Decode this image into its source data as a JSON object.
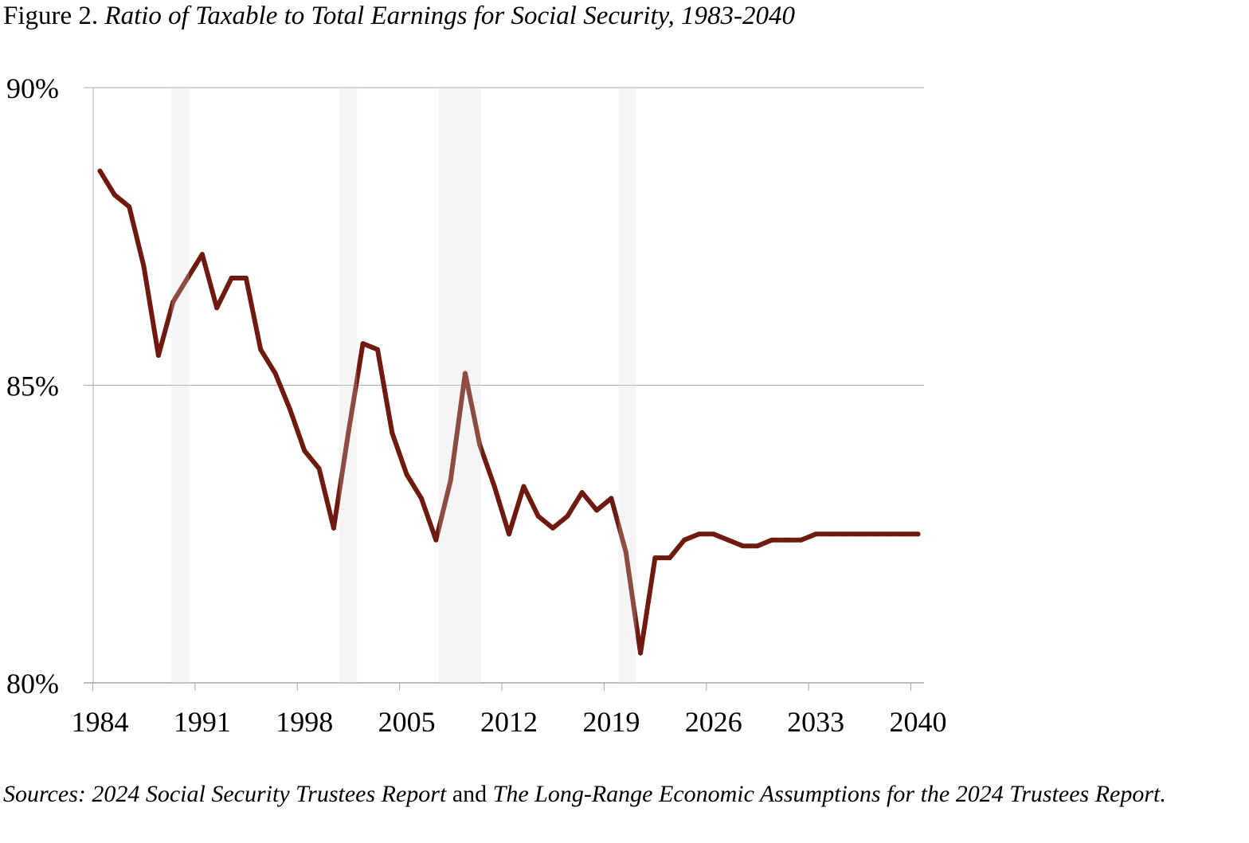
{
  "title": {
    "prefix": "Figure 2.",
    "text": "Ratio of Taxable to Total Earnings for Social Security, 1983-2040"
  },
  "source": {
    "part1": "Sources: 2024 Social Security Trustees Report",
    "connector": " and ",
    "part2": "The Long-Range Economic Assumptions for the 2024 Trustees Report."
  },
  "chart_data": {
    "type": "line",
    "title": "",
    "xlabel": "",
    "ylabel": "",
    "ylim": [
      80,
      90
    ],
    "y_ticks": [
      {
        "value": 80,
        "label": "80%"
      },
      {
        "value": 85,
        "label": "85%"
      },
      {
        "value": 90,
        "label": "90%"
      }
    ],
    "x_ticks": [
      "1984",
      "1991",
      "1998",
      "2005",
      "2012",
      "2019",
      "2026",
      "2033",
      "2040"
    ],
    "grid": "horizontal",
    "line_color": "#6e1a0e",
    "shading_color": "#f2f2f2",
    "shaded_periods": [
      {
        "start": 1988.9,
        "end": 1990.1
      },
      {
        "start": 2000.4,
        "end": 2001.6
      },
      {
        "start": 2007.2,
        "end": 2010.1
      },
      {
        "start": 2019.5,
        "end": 2020.7
      }
    ],
    "x": [
      1984,
      1985,
      1986,
      1987,
      1988,
      1989,
      1990,
      1991,
      1992,
      1993,
      1994,
      1995,
      1996,
      1997,
      1998,
      1999,
      2000,
      2001,
      2002,
      2003,
      2004,
      2005,
      2006,
      2007,
      2008,
      2009,
      2010,
      2011,
      2012,
      2013,
      2014,
      2015,
      2016,
      2017,
      2018,
      2019,
      2020,
      2021,
      2022,
      2023,
      2024,
      2025,
      2026,
      2027,
      2028,
      2029,
      2030,
      2031,
      2032,
      2033,
      2034,
      2035,
      2036,
      2037,
      2038,
      2039,
      2040
    ],
    "series": [
      {
        "values": [
          88.6,
          88.2,
          88.0,
          87.0,
          85.5,
          86.4,
          86.8,
          87.2,
          86.3,
          86.8,
          86.8,
          85.6,
          85.2,
          84.6,
          83.9,
          83.6,
          82.6,
          84.2,
          85.7,
          85.6,
          84.2,
          83.5,
          83.1,
          82.4,
          83.4,
          85.2,
          84.0,
          83.3,
          82.5,
          83.3,
          82.8,
          82.6,
          82.8,
          83.2,
          82.9,
          83.1,
          82.2,
          80.5,
          82.1,
          82.1,
          82.4,
          82.5,
          82.5,
          82.4,
          82.3,
          82.3,
          82.4,
          82.4,
          82.4,
          82.5,
          82.5,
          82.5,
          82.5,
          82.5,
          82.5,
          82.5,
          82.5
        ]
      }
    ]
  }
}
